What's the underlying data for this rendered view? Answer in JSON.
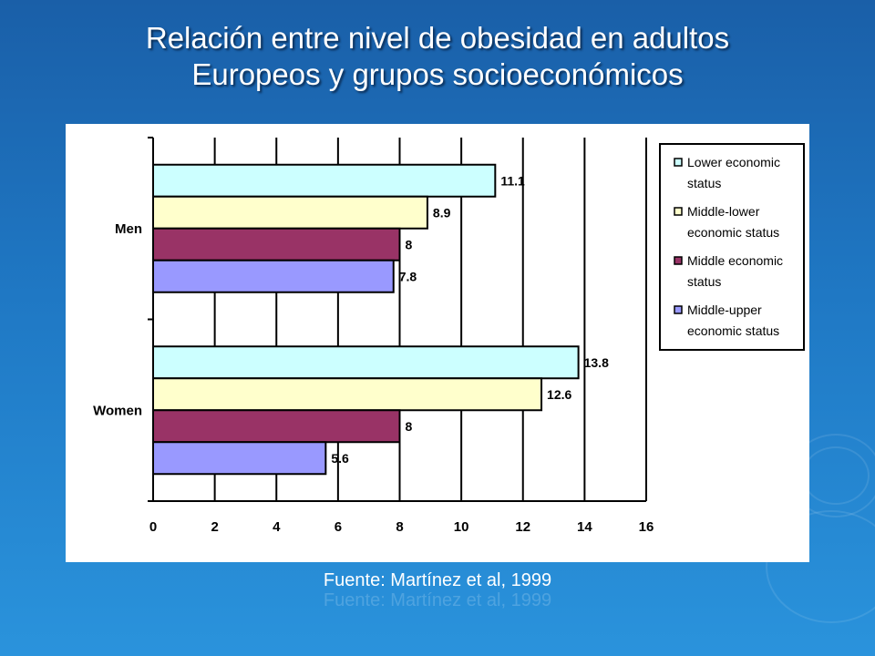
{
  "slide": {
    "title_line1": "Relación entre nivel de obesidad en adultos",
    "title_line2": "Europeos y grupos socioeconómicos",
    "source": "Fuente: Martínez et al, 1999"
  },
  "colors": {
    "series": [
      "#ccffff",
      "#ffffcc",
      "#993366",
      "#9999ff"
    ],
    "bar_outline": "#000000"
  },
  "chart_data": {
    "type": "bar",
    "orientation": "horizontal",
    "title": "",
    "xlabel": "",
    "ylabel": "",
    "categories": [
      "Men",
      "Women"
    ],
    "series": [
      {
        "name": "Lower economic status",
        "values": [
          11.1,
          13.8
        ],
        "labels": [
          "11.1",
          "13.8"
        ]
      },
      {
        "name": "Middle-lower economic status",
        "values": [
          8.9,
          12.6
        ],
        "labels": [
          "8.9",
          "12.6"
        ]
      },
      {
        "name": "Middle economic status",
        "values": [
          8,
          8
        ],
        "labels": [
          "8",
          "8"
        ]
      },
      {
        "name": "Middle-upper economic status",
        "values": [
          7.8,
          5.6
        ],
        "labels": [
          "7.8",
          "5.6"
        ]
      }
    ],
    "legend_lines": [
      [
        "Lower economic",
        "status"
      ],
      [
        "Middle-lower",
        "economic status"
      ],
      [
        "Middle economic",
        "status"
      ],
      [
        "Middle-upper",
        "economic status"
      ]
    ],
    "xlim": [
      0,
      16
    ],
    "xticks": [
      0,
      2,
      4,
      6,
      8,
      10,
      12,
      14,
      16
    ],
    "grid": true,
    "legend_position": "right"
  }
}
